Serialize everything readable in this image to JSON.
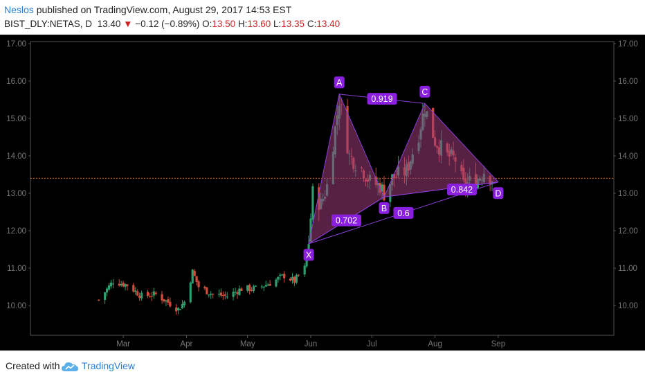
{
  "header": {
    "author": "Neslos",
    "published_text": "published on TradingView.com, August 29, 2017 14:53 EST",
    "symbol": "BIST_DLY:NETAS, D",
    "last": "13.40",
    "change": "−0.12 (−0.89%)",
    "o_label": "O:",
    "o_val": "13.50",
    "h_label": "H:",
    "h_val": "13.60",
    "l_label": "L:",
    "l_val": "13.35",
    "c_label": "C:",
    "c_val": "13.40"
  },
  "footer": {
    "created_with": "Created with",
    "brand": "TradingView"
  },
  "colors": {
    "up": "#2e9e6e",
    "down": "#d24c3c",
    "pattern_fill": "#9c3d7a",
    "pattern_line": "#8b3fd6",
    "label_bg": "#8a1fe0",
    "price_line": "#d2691e"
  },
  "chart_data": {
    "type": "candlestick",
    "ylim": [
      9.6,
      17.1
    ],
    "y_ticks": [
      "17.00",
      "16.00",
      "15.00",
      "14.00",
      "13.00",
      "12.00",
      "11.00",
      "10.00"
    ],
    "x_ticks": [
      "Mar",
      "Apr",
      "May",
      "Jun",
      "Jul",
      "Aug",
      "Sep"
    ],
    "current_price": 13.4,
    "pattern_points": [
      {
        "label": "X",
        "x": "2017-05-31",
        "y": 11.65
      },
      {
        "label": "A",
        "x": "2017-06-15",
        "y": 15.65
      },
      {
        "label": "B",
        "x": "2017-07-07",
        "y": 12.9
      },
      {
        "label": "C",
        "x": "2017-07-27",
        "y": 15.4
      },
      {
        "label": "D",
        "x": "2017-09-01",
        "y": 13.3
      }
    ],
    "ratios": [
      {
        "label": "0.919",
        "between": "A-C"
      },
      {
        "label": "0.702",
        "between": "X-B"
      },
      {
        "label": "0.6",
        "between": "X-D"
      },
      {
        "label": "0.842",
        "between": "B-D"
      }
    ],
    "anchors": [
      [
        "2017-02-17",
        10.15
      ],
      [
        "2017-02-24",
        10.65
      ],
      [
        "2017-03-03",
        10.55
      ],
      [
        "2017-03-10",
        10.25
      ],
      [
        "2017-03-17",
        10.3
      ],
      [
        "2017-03-24",
        10.05
      ],
      [
        "2017-03-28",
        9.9
      ],
      [
        "2017-03-31",
        10.1
      ],
      [
        "2017-04-04",
        10.9
      ],
      [
        "2017-04-07",
        10.5
      ],
      [
        "2017-04-14",
        10.3
      ],
      [
        "2017-04-21",
        10.25
      ],
      [
        "2017-04-28",
        10.45
      ],
      [
        "2017-05-05",
        10.45
      ],
      [
        "2017-05-12",
        10.6
      ],
      [
        "2017-05-19",
        10.8
      ],
      [
        "2017-05-24",
        10.65
      ],
      [
        "2017-05-26",
        10.8
      ],
      [
        "2017-05-29",
        11.0
      ],
      [
        "2017-05-31",
        11.7
      ],
      [
        "2017-06-02",
        13.0
      ],
      [
        "2017-06-06",
        12.7
      ],
      [
        "2017-06-09",
        13.2
      ],
      [
        "2017-06-15",
        15.5
      ],
      [
        "2017-06-20",
        14.0
      ],
      [
        "2017-06-27",
        13.6
      ],
      [
        "2017-06-30",
        13.3
      ],
      [
        "2017-07-05",
        13.2
      ],
      [
        "2017-07-07",
        13.0
      ],
      [
        "2017-07-11",
        13.4
      ],
      [
        "2017-07-18",
        13.6
      ],
      [
        "2017-07-24",
        14.6
      ],
      [
        "2017-07-27",
        15.3
      ],
      [
        "2017-08-01",
        14.4
      ],
      [
        "2017-08-07",
        14.0
      ],
      [
        "2017-08-11",
        13.9
      ],
      [
        "2017-08-15",
        13.2
      ],
      [
        "2017-08-18",
        13.3
      ],
      [
        "2017-08-22",
        13.4
      ],
      [
        "2017-08-25",
        13.6
      ],
      [
        "2017-08-29",
        13.4
      ]
    ]
  }
}
